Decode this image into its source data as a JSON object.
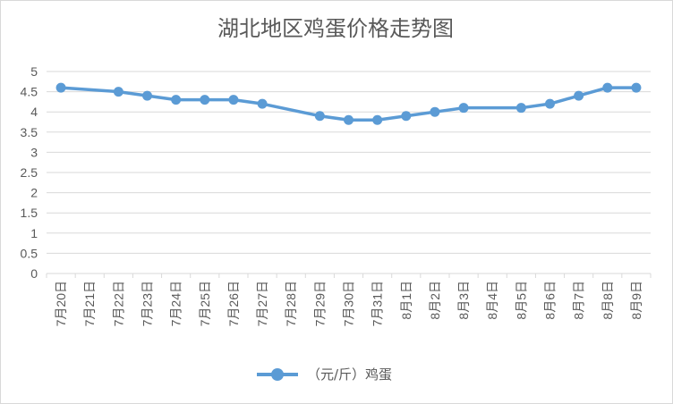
{
  "chart_data": {
    "type": "line",
    "title": "湖北地区鸡蛋价格走势图",
    "categories": [
      "7月20日",
      "7月21日",
      "7月22日",
      "7月23日",
      "7月24日",
      "7月25日",
      "7月26日",
      "7月27日",
      "7月28日",
      "7月29日",
      "7月30日",
      "7月31日",
      "8月1日",
      "8月2日",
      "8月3日",
      "8月4日",
      "8月5日",
      "8月6日",
      "8月7日",
      "8月8日",
      "8月9日"
    ],
    "series": [
      {
        "name": "（元/斤）鸡蛋",
        "values": [
          4.6,
          null,
          4.5,
          4.4,
          4.3,
          4.3,
          4.3,
          4.2,
          null,
          3.9,
          3.8,
          3.8,
          3.9,
          4.0,
          4.1,
          null,
          4.1,
          4.2,
          4.4,
          4.6,
          4.6
        ],
        "color": "#5b9bd5"
      }
    ],
    "ylim": [
      0,
      5
    ],
    "yticks": [
      "0",
      "0.5",
      "1",
      "1.5",
      "2",
      "2.5",
      "3",
      "3.5",
      "4",
      "4.5",
      "5"
    ],
    "grid": true,
    "legend_position": "bottom"
  }
}
